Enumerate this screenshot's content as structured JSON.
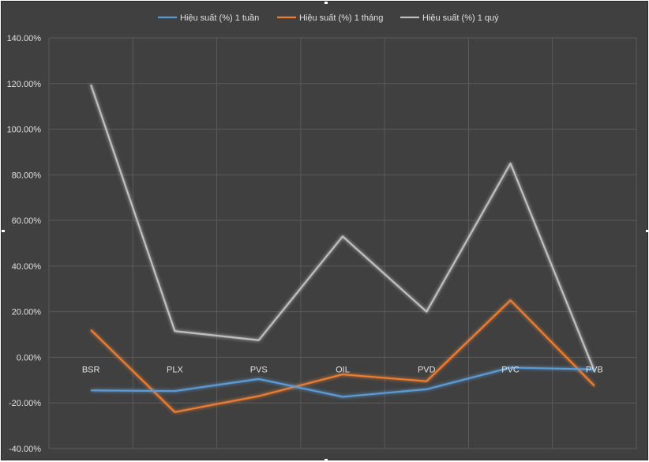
{
  "chart_data": {
    "type": "line",
    "title": "",
    "xlabel": "",
    "ylabel": "",
    "ylim": [
      -40,
      140
    ],
    "y_tick_step": 20,
    "y_tick_format": "percent_2dp",
    "categories": [
      "BSR",
      "PLX",
      "PVS",
      "OIL",
      "PVD",
      "PVC",
      "PVB"
    ],
    "series": [
      {
        "name": "Hiệu suất (%) 1 tuần",
        "color": "#5b9bd5",
        "values": [
          -14.5,
          -14.8,
          -9.5,
          -17.3,
          -14.0,
          -4.5,
          -5.3
        ]
      },
      {
        "name": "Hiệu suất (%) 1 tháng",
        "color": "#ed7d31",
        "values": [
          12.0,
          -24.0,
          -17.0,
          -7.5,
          -10.5,
          25.0,
          -12.5
        ]
      },
      {
        "name": "Hiệu suất (%) 1 quý",
        "color": "#bfbfbf",
        "values": [
          119.5,
          11.5,
          7.5,
          53.0,
          20.0,
          85.0,
          -6.0
        ]
      }
    ],
    "legend_position": "top",
    "grid": true,
    "category_labels_at_zero": true
  }
}
